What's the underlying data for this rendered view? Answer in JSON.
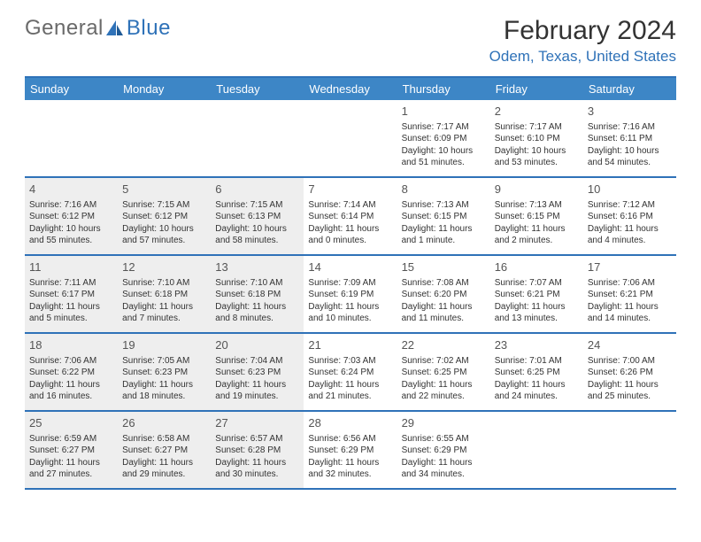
{
  "logo": {
    "part1": "General",
    "part2": "Blue"
  },
  "title": "February 2024",
  "location": "Odem, Texas, United States",
  "colors": {
    "header_bg": "#3d86c6",
    "accent": "#2f72b8",
    "shaded_bg": "#eeeeee",
    "text": "#333333",
    "logo_gray": "#6a6a6a"
  },
  "weekdays": [
    "Sunday",
    "Monday",
    "Tuesday",
    "Wednesday",
    "Thursday",
    "Friday",
    "Saturday"
  ],
  "weeks": [
    [
      {
        "empty": true
      },
      {
        "empty": true
      },
      {
        "empty": true
      },
      {
        "empty": true
      },
      {
        "day": "1",
        "sunrise": "Sunrise: 7:17 AM",
        "sunset": "Sunset: 6:09 PM",
        "daylight1": "Daylight: 10 hours",
        "daylight2": "and 51 minutes."
      },
      {
        "day": "2",
        "sunrise": "Sunrise: 7:17 AM",
        "sunset": "Sunset: 6:10 PM",
        "daylight1": "Daylight: 10 hours",
        "daylight2": "and 53 minutes."
      },
      {
        "day": "3",
        "sunrise": "Sunrise: 7:16 AM",
        "sunset": "Sunset: 6:11 PM",
        "daylight1": "Daylight: 10 hours",
        "daylight2": "and 54 minutes."
      }
    ],
    [
      {
        "day": "4",
        "shaded": true,
        "sunrise": "Sunrise: 7:16 AM",
        "sunset": "Sunset: 6:12 PM",
        "daylight1": "Daylight: 10 hours",
        "daylight2": "and 55 minutes."
      },
      {
        "day": "5",
        "shaded": true,
        "sunrise": "Sunrise: 7:15 AM",
        "sunset": "Sunset: 6:12 PM",
        "daylight1": "Daylight: 10 hours",
        "daylight2": "and 57 minutes."
      },
      {
        "day": "6",
        "shaded": true,
        "sunrise": "Sunrise: 7:15 AM",
        "sunset": "Sunset: 6:13 PM",
        "daylight1": "Daylight: 10 hours",
        "daylight2": "and 58 minutes."
      },
      {
        "day": "7",
        "sunrise": "Sunrise: 7:14 AM",
        "sunset": "Sunset: 6:14 PM",
        "daylight1": "Daylight: 11 hours",
        "daylight2": "and 0 minutes."
      },
      {
        "day": "8",
        "sunrise": "Sunrise: 7:13 AM",
        "sunset": "Sunset: 6:15 PM",
        "daylight1": "Daylight: 11 hours",
        "daylight2": "and 1 minute."
      },
      {
        "day": "9",
        "sunrise": "Sunrise: 7:13 AM",
        "sunset": "Sunset: 6:15 PM",
        "daylight1": "Daylight: 11 hours",
        "daylight2": "and 2 minutes."
      },
      {
        "day": "10",
        "sunrise": "Sunrise: 7:12 AM",
        "sunset": "Sunset: 6:16 PM",
        "daylight1": "Daylight: 11 hours",
        "daylight2": "and 4 minutes."
      }
    ],
    [
      {
        "day": "11",
        "shaded": true,
        "sunrise": "Sunrise: 7:11 AM",
        "sunset": "Sunset: 6:17 PM",
        "daylight1": "Daylight: 11 hours",
        "daylight2": "and 5 minutes."
      },
      {
        "day": "12",
        "shaded": true,
        "sunrise": "Sunrise: 7:10 AM",
        "sunset": "Sunset: 6:18 PM",
        "daylight1": "Daylight: 11 hours",
        "daylight2": "and 7 minutes."
      },
      {
        "day": "13",
        "shaded": true,
        "sunrise": "Sunrise: 7:10 AM",
        "sunset": "Sunset: 6:18 PM",
        "daylight1": "Daylight: 11 hours",
        "daylight2": "and 8 minutes."
      },
      {
        "day": "14",
        "sunrise": "Sunrise: 7:09 AM",
        "sunset": "Sunset: 6:19 PM",
        "daylight1": "Daylight: 11 hours",
        "daylight2": "and 10 minutes."
      },
      {
        "day": "15",
        "sunrise": "Sunrise: 7:08 AM",
        "sunset": "Sunset: 6:20 PM",
        "daylight1": "Daylight: 11 hours",
        "daylight2": "and 11 minutes."
      },
      {
        "day": "16",
        "sunrise": "Sunrise: 7:07 AM",
        "sunset": "Sunset: 6:21 PM",
        "daylight1": "Daylight: 11 hours",
        "daylight2": "and 13 minutes."
      },
      {
        "day": "17",
        "sunrise": "Sunrise: 7:06 AM",
        "sunset": "Sunset: 6:21 PM",
        "daylight1": "Daylight: 11 hours",
        "daylight2": "and 14 minutes."
      }
    ],
    [
      {
        "day": "18",
        "shaded": true,
        "sunrise": "Sunrise: 7:06 AM",
        "sunset": "Sunset: 6:22 PM",
        "daylight1": "Daylight: 11 hours",
        "daylight2": "and 16 minutes."
      },
      {
        "day": "19",
        "shaded": true,
        "sunrise": "Sunrise: 7:05 AM",
        "sunset": "Sunset: 6:23 PM",
        "daylight1": "Daylight: 11 hours",
        "daylight2": "and 18 minutes."
      },
      {
        "day": "20",
        "shaded": true,
        "sunrise": "Sunrise: 7:04 AM",
        "sunset": "Sunset: 6:23 PM",
        "daylight1": "Daylight: 11 hours",
        "daylight2": "and 19 minutes."
      },
      {
        "day": "21",
        "sunrise": "Sunrise: 7:03 AM",
        "sunset": "Sunset: 6:24 PM",
        "daylight1": "Daylight: 11 hours",
        "daylight2": "and 21 minutes."
      },
      {
        "day": "22",
        "sunrise": "Sunrise: 7:02 AM",
        "sunset": "Sunset: 6:25 PM",
        "daylight1": "Daylight: 11 hours",
        "daylight2": "and 22 minutes."
      },
      {
        "day": "23",
        "sunrise": "Sunrise: 7:01 AM",
        "sunset": "Sunset: 6:25 PM",
        "daylight1": "Daylight: 11 hours",
        "daylight2": "and 24 minutes."
      },
      {
        "day": "24",
        "sunrise": "Sunrise: 7:00 AM",
        "sunset": "Sunset: 6:26 PM",
        "daylight1": "Daylight: 11 hours",
        "daylight2": "and 25 minutes."
      }
    ],
    [
      {
        "day": "25",
        "shaded": true,
        "sunrise": "Sunrise: 6:59 AM",
        "sunset": "Sunset: 6:27 PM",
        "daylight1": "Daylight: 11 hours",
        "daylight2": "and 27 minutes."
      },
      {
        "day": "26",
        "shaded": true,
        "sunrise": "Sunrise: 6:58 AM",
        "sunset": "Sunset: 6:27 PM",
        "daylight1": "Daylight: 11 hours",
        "daylight2": "and 29 minutes."
      },
      {
        "day": "27",
        "shaded": true,
        "sunrise": "Sunrise: 6:57 AM",
        "sunset": "Sunset: 6:28 PM",
        "daylight1": "Daylight: 11 hours",
        "daylight2": "and 30 minutes."
      },
      {
        "day": "28",
        "sunrise": "Sunrise: 6:56 AM",
        "sunset": "Sunset: 6:29 PM",
        "daylight1": "Daylight: 11 hours",
        "daylight2": "and 32 minutes."
      },
      {
        "day": "29",
        "sunrise": "Sunrise: 6:55 AM",
        "sunset": "Sunset: 6:29 PM",
        "daylight1": "Daylight: 11 hours",
        "daylight2": "and 34 minutes."
      },
      {
        "empty": true
      },
      {
        "empty": true
      }
    ]
  ]
}
